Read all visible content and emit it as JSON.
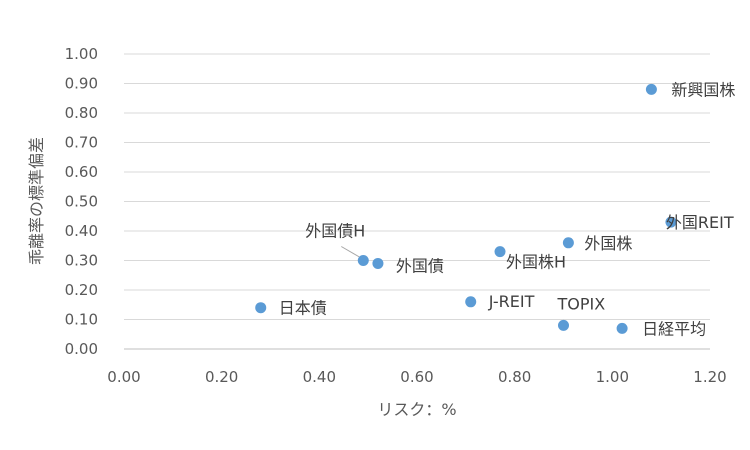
{
  "chart_data": {
    "type": "scatter",
    "xlabel": "リスク：%",
    "ylabel": "乖離率の標準偏差",
    "xlim": [
      0,
      1.2
    ],
    "ylim": [
      0,
      1.0
    ],
    "x_ticks": [
      "0.00",
      "0.20",
      "0.40",
      "0.60",
      "0.80",
      "1.00",
      "1.20"
    ],
    "y_ticks": [
      "0.00",
      "0.10",
      "0.20",
      "0.30",
      "0.40",
      "0.50",
      "0.60",
      "0.70",
      "0.80",
      "0.90",
      "1.00"
    ],
    "grid": true,
    "points": [
      {
        "label": "日本債",
        "x": 0.28,
        "y": 0.14
      },
      {
        "label": "外国債H",
        "x": 0.49,
        "y": 0.3
      },
      {
        "label": "外国債",
        "x": 0.52,
        "y": 0.29
      },
      {
        "label": "J-REIT",
        "x": 0.71,
        "y": 0.16
      },
      {
        "label": "外国株H",
        "x": 0.77,
        "y": 0.33
      },
      {
        "label": "TOPIX",
        "x": 0.9,
        "y": 0.08
      },
      {
        "label": "外国株",
        "x": 0.91,
        "y": 0.36
      },
      {
        "label": "日経平均",
        "x": 1.02,
        "y": 0.07
      },
      {
        "label": "新興国株",
        "x": 1.08,
        "y": 0.88
      },
      {
        "label": "外国REIT",
        "x": 1.12,
        "y": 0.43
      }
    ],
    "colors": {
      "point": "#5b9bd5",
      "grid": "#d9d9d9",
      "text": "#595959"
    }
  }
}
